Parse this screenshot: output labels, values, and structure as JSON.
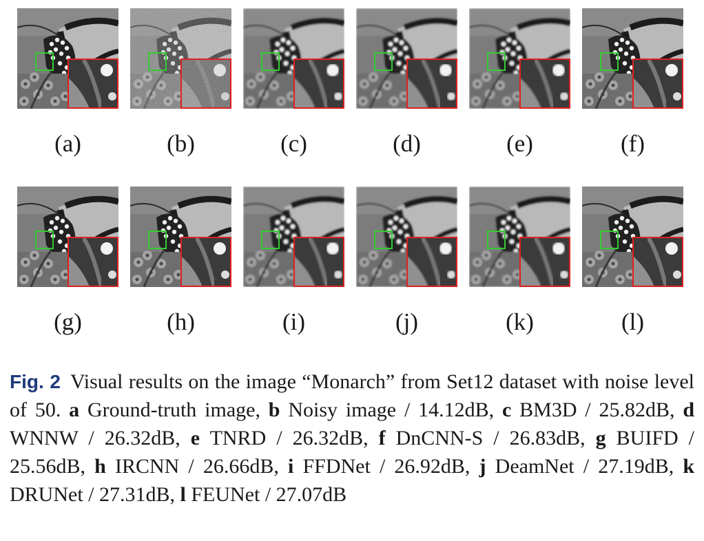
{
  "panels": [
    {
      "label": "(a)",
      "variant": "clean"
    },
    {
      "label": "(b)",
      "variant": "noisy"
    },
    {
      "label": "(c)",
      "variant": "smooth"
    },
    {
      "label": "(d)",
      "variant": "smooth"
    },
    {
      "label": "(e)",
      "variant": "smooth"
    },
    {
      "label": "(f)",
      "variant": "clean"
    },
    {
      "label": "(g)",
      "variant": "clean"
    },
    {
      "label": "(h)",
      "variant": "clean"
    },
    {
      "label": "(i)",
      "variant": "smooth"
    },
    {
      "label": "(j)",
      "variant": "smooth"
    },
    {
      "label": "(k)",
      "variant": "smooth"
    },
    {
      "label": "(l)",
      "variant": "clean"
    }
  ],
  "caption": {
    "fig_label": "Fig. 2",
    "intro": "Visual results on the image “Monarch” from Set12 dataset with noise level of 50.",
    "items": [
      {
        "letter": "a",
        "text": "Ground-truth image,"
      },
      {
        "letter": "b",
        "text": "Noisy image / 14.12dB,"
      },
      {
        "letter": "c",
        "text": "BM3D / 25.82dB,"
      },
      {
        "letter": "d",
        "text": "WNNW / 26.32dB,"
      },
      {
        "letter": "e",
        "text": "TNRD / 26.32dB,"
      },
      {
        "letter": "f",
        "text": "DnCNN-S / 26.83dB,"
      },
      {
        "letter": "g",
        "text": "BUIFD / 25.56dB,"
      },
      {
        "letter": "h",
        "text": "IRCNN / 26.66dB,"
      },
      {
        "letter": "i",
        "text": "FFDNet / 26.92dB,"
      },
      {
        "letter": "j",
        "text": "DeamNet / 27.19dB,"
      },
      {
        "letter": "k",
        "text": "DRUNet / 27.31dB,"
      },
      {
        "letter": "l",
        "text": "FEUNet / 27.07dB"
      }
    ]
  },
  "colors": {
    "zoom_box": "#33cc33",
    "inset_border": "#e02020"
  }
}
